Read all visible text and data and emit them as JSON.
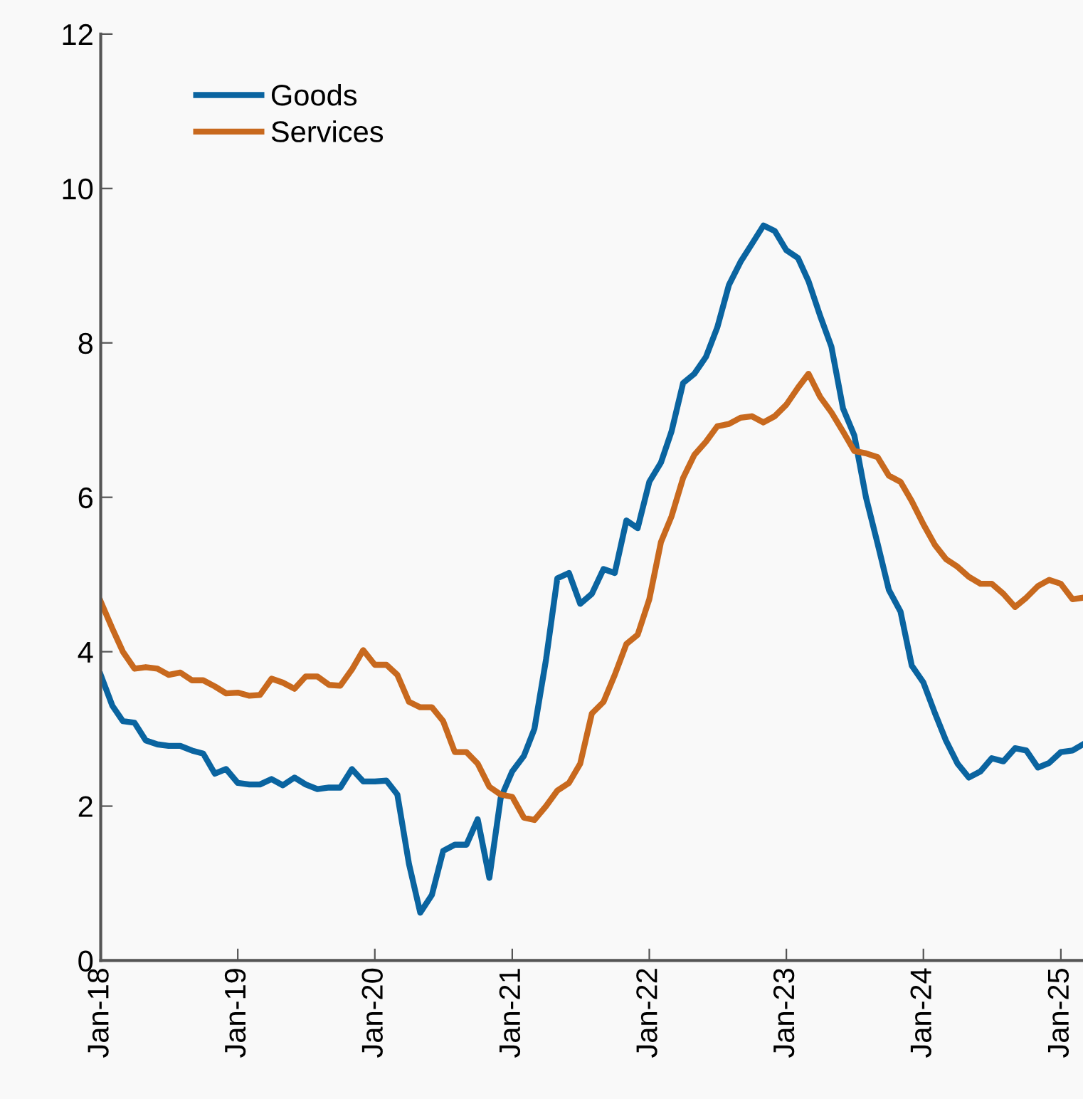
{
  "chart_data": {
    "type": "line",
    "x": [
      "2018-01",
      "2018-02",
      "2018-03",
      "2018-04",
      "2018-05",
      "2018-06",
      "2018-07",
      "2018-08",
      "2018-09",
      "2018-10",
      "2018-11",
      "2018-12",
      "2019-01",
      "2019-02",
      "2019-03",
      "2019-04",
      "2019-05",
      "2019-06",
      "2019-07",
      "2019-08",
      "2019-09",
      "2019-10",
      "2019-11",
      "2019-12",
      "2020-01",
      "2020-02",
      "2020-03",
      "2020-04",
      "2020-05",
      "2020-06",
      "2020-07",
      "2020-08",
      "2020-09",
      "2020-10",
      "2020-11",
      "2020-12",
      "2021-01",
      "2021-02",
      "2021-03",
      "2021-04",
      "2021-05",
      "2021-06",
      "2021-07",
      "2021-08",
      "2021-09",
      "2021-10",
      "2021-11",
      "2021-12",
      "2022-01",
      "2022-02",
      "2022-03",
      "2022-04",
      "2022-05",
      "2022-06",
      "2022-07",
      "2022-08",
      "2022-09",
      "2022-10",
      "2022-11",
      "2022-12",
      "2023-01",
      "2023-02",
      "2023-03",
      "2023-04",
      "2023-05",
      "2023-06",
      "2023-07",
      "2023-08",
      "2023-09",
      "2023-10",
      "2023-11",
      "2023-12",
      "2024-01",
      "2024-02",
      "2024-03",
      "2024-04",
      "2024-05",
      "2024-06",
      "2024-07",
      "2024-08",
      "2024-09",
      "2024-10",
      "2024-11",
      "2024-12",
      "2025-01",
      "2025-02",
      "2025-03"
    ],
    "series": [
      {
        "name": "Goods",
        "color": "#0a64a0",
        "values": [
          3.7,
          3.3,
          3.1,
          3.08,
          2.85,
          2.8,
          2.78,
          2.78,
          2.72,
          2.68,
          2.42,
          2.48,
          2.3,
          2.28,
          2.28,
          2.35,
          2.27,
          2.37,
          2.28,
          2.22,
          2.24,
          2.24,
          2.48,
          2.32,
          2.32,
          2.33,
          2.15,
          1.25,
          0.62,
          0.85,
          1.42,
          1.5,
          1.5,
          1.83,
          1.07,
          2.1,
          2.45,
          2.65,
          3.0,
          3.9,
          4.95,
          5.02,
          4.62,
          4.75,
          5.07,
          5.02,
          5.7,
          5.6,
          6.2,
          6.45,
          6.85,
          7.48,
          7.6,
          7.82,
          8.2,
          8.75,
          9.05,
          9.28,
          9.52,
          9.45,
          9.2,
          9.1,
          8.8,
          8.35,
          7.95,
          7.15,
          6.8,
          6.0,
          5.4,
          4.8,
          4.52,
          3.82,
          3.6,
          3.2,
          2.85,
          2.55,
          2.37,
          2.45,
          2.62,
          2.58,
          2.75,
          2.72,
          2.5,
          2.56,
          2.7,
          2.72,
          2.8
        ]
      },
      {
        "name": "Services",
        "color": "#c8691e",
        "values": [
          4.65,
          4.3,
          4.0,
          3.78,
          3.8,
          3.78,
          3.7,
          3.73,
          3.63,
          3.63,
          3.55,
          3.46,
          3.47,
          3.43,
          3.44,
          3.65,
          3.6,
          3.52,
          3.68,
          3.68,
          3.57,
          3.56,
          3.77,
          4.02,
          3.83,
          3.83,
          3.7,
          3.35,
          3.28,
          3.28,
          3.1,
          2.7,
          2.7,
          2.55,
          2.25,
          2.15,
          2.12,
          1.85,
          1.82,
          2.0,
          2.2,
          2.3,
          2.55,
          3.2,
          3.35,
          3.7,
          4.1,
          4.22,
          4.68,
          5.42,
          5.75,
          6.25,
          6.55,
          6.72,
          6.92,
          6.95,
          7.03,
          7.05,
          6.97,
          7.05,
          7.2,
          7.42,
          7.6,
          7.3,
          7.1,
          6.85,
          6.6,
          6.57,
          6.52,
          6.28,
          6.2,
          5.95,
          5.65,
          5.38,
          5.2,
          5.1,
          4.97,
          4.88,
          4.88,
          4.75,
          4.58,
          4.7,
          4.85,
          4.93,
          4.88,
          4.68,
          4.7
        ]
      }
    ],
    "xlim": [
      "2018-01",
      "2025-03"
    ],
    "xticks": [
      {
        "value": "2018-01",
        "label": "Jan-18"
      },
      {
        "value": "2019-01",
        "label": "Jan-19"
      },
      {
        "value": "2020-01",
        "label": "Jan-20"
      },
      {
        "value": "2021-01",
        "label": "Jan-21"
      },
      {
        "value": "2022-01",
        "label": "Jan-22"
      },
      {
        "value": "2023-01",
        "label": "Jan-23"
      },
      {
        "value": "2024-01",
        "label": "Jan-24"
      },
      {
        "value": "2025-01",
        "label": "Jan-25"
      }
    ],
    "ylim": [
      0,
      12
    ],
    "yticks": [
      0,
      2,
      4,
      6,
      8,
      10,
      12
    ],
    "legend": "top left",
    "marker": "none",
    "line_style": "solid"
  }
}
